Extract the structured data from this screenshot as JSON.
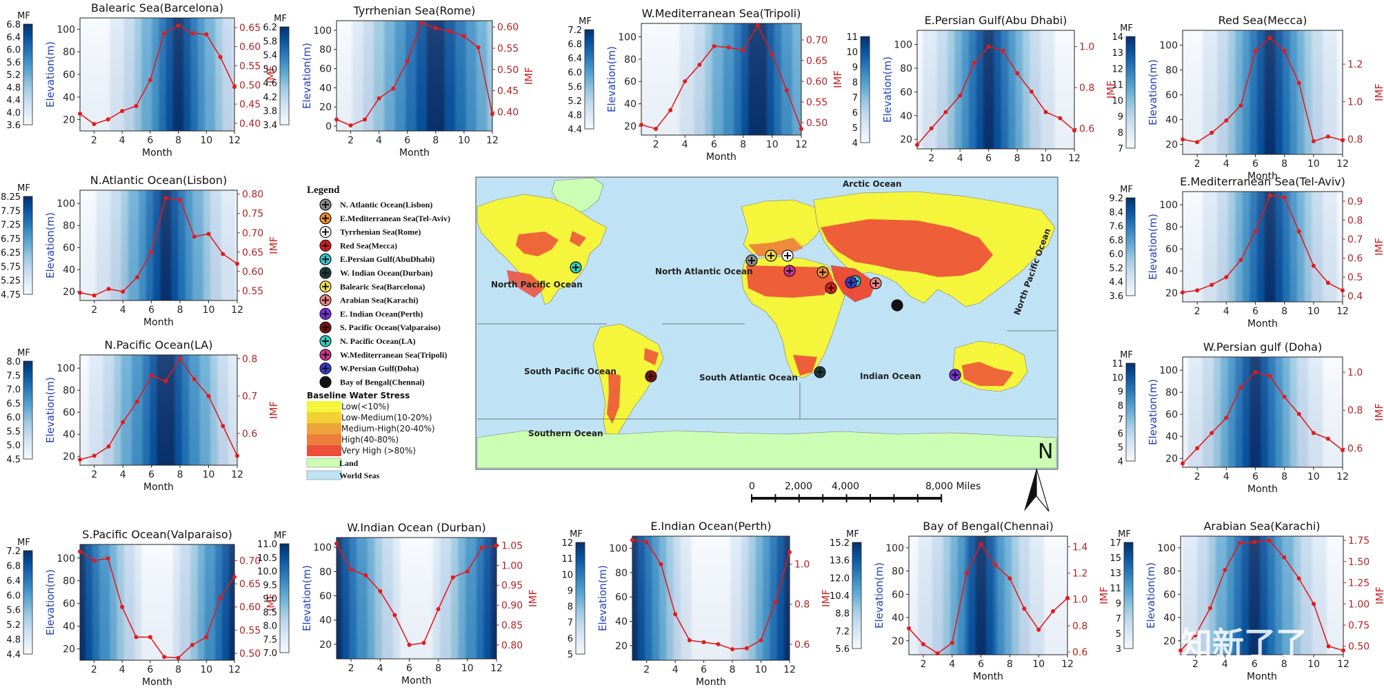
{
  "colors": {
    "ramp": [
      "#f7fbff",
      "#deebf7",
      "#c6dbef",
      "#9ecae1",
      "#6baed6",
      "#4292c6",
      "#2171b5",
      "#08519c",
      "#08306b"
    ],
    "imf_line": "#e31a1c",
    "ylabel_blue": "#1f3fbf",
    "ylabel_red": "#cc2222",
    "sea": "#bfe3f5",
    "land": "#ccffb3",
    "stress": [
      "#f5f53b",
      "#f2d232",
      "#eea43a",
      "#ec7f3c",
      "#ec4e3a"
    ]
  },
  "chart_data": [
    {
      "id": "barcelona",
      "type": "contour+line",
      "title": "Balearic Sea(Barcelona)",
      "xlabel": "Month",
      "ylabel": "Elevation(m)",
      "y2label": "IMF",
      "cbar_label": "MF",
      "xticks": [
        2,
        4,
        6,
        8,
        10,
        12
      ],
      "xlim": [
        1,
        12
      ],
      "yticks": [
        20,
        40,
        60,
        80,
        100
      ],
      "ylim": [
        10,
        110
      ],
      "y2ticks": [
        "0.40",
        "0.45",
        "0.50",
        "0.55",
        "0.60",
        "0.65"
      ],
      "y2lim": [
        0.38,
        0.675
      ],
      "cbar_ticks": [
        "3.6",
        "4.0",
        "4.4",
        "4.8",
        "5.2",
        "5.6",
        "6.0",
        "6.4",
        "6.8"
      ],
      "peak_month": 8,
      "sharpness": 1.6,
      "imf": [
        0.425,
        0.398,
        0.41,
        0.432,
        0.445,
        0.513,
        0.635,
        0.655,
        0.635,
        0.632,
        0.573,
        0.495
      ]
    },
    {
      "id": "rome",
      "type": "contour+line",
      "title": "Tyrrhenian Sea(Rome)",
      "xlabel": "Month",
      "ylabel": "Elevation(m)",
      "y2label": "IMF",
      "cbar_label": "MF",
      "xticks": [
        2,
        4,
        6,
        8,
        10,
        12
      ],
      "xlim": [
        1,
        12
      ],
      "yticks": [
        0,
        20,
        40,
        60,
        80,
        100
      ],
      "ylim": [
        -5,
        110
      ],
      "y2ticks": [
        "0.40",
        "0.45",
        "0.50",
        "0.55",
        "0.60"
      ],
      "y2lim": [
        0.355,
        0.615
      ],
      "cbar_ticks": [
        "3.4",
        "3.8",
        "4.2",
        "4.6",
        "5.0",
        "5.4",
        "5.8",
        "6.2"
      ],
      "peak_month": 8,
      "sharpness": 1.0,
      "imf": [
        0.382,
        0.368,
        0.382,
        0.432,
        0.455,
        0.52,
        0.61,
        0.597,
        0.59,
        0.578,
        0.552,
        0.395
      ]
    },
    {
      "id": "tripoli",
      "type": "contour+line",
      "title": "W.Mediterranean Sea(Tripoli)",
      "xlabel": "Month",
      "ylabel": "Elevation(m)",
      "y2label": "IMF",
      "cbar_label": "MF",
      "xticks": [
        2,
        4,
        6,
        8,
        10,
        12
      ],
      "xlim": [
        1,
        12
      ],
      "yticks": [
        20,
        40,
        60,
        80,
        100
      ],
      "ylim": [
        12,
        112
      ],
      "y2ticks": [
        "0.50",
        "0.55",
        "0.60",
        "0.65",
        "0.70"
      ],
      "y2lim": [
        0.47,
        0.74
      ],
      "cbar_ticks": [
        "4.4",
        "4.8",
        "5.2",
        "5.6",
        "6.0",
        "6.4",
        "6.8",
        "7.2"
      ],
      "peak_month": 9,
      "sharpness": 1.3,
      "imf": [
        0.495,
        0.485,
        0.53,
        0.6,
        0.64,
        0.685,
        0.682,
        0.675,
        0.735,
        0.665,
        0.578,
        0.485
      ]
    },
    {
      "id": "abudhabi",
      "type": "contour+line",
      "title": "E.Persian Gulf(Abu Dhabi)",
      "xlabel": "",
      "ylabel": "Elevation(m)",
      "y2label": "IMF",
      "cbar_label": "",
      "xticks": [
        2,
        4,
        6,
        8,
        10,
        12
      ],
      "xlim": [
        1,
        12
      ],
      "yticks": [
        20,
        40,
        60,
        80,
        100
      ],
      "ylim": [
        12,
        112
      ],
      "y2ticks": [
        "0.6",
        "0.8",
        "1.0"
      ],
      "y2lim": [
        0.5,
        1.08
      ],
      "cbar_ticks": [
        "4",
        "5",
        "6",
        "7",
        "8",
        "9",
        "10",
        "11"
      ],
      "peak_month": 6,
      "sharpness": 1.8,
      "imf": [
        0.52,
        0.6,
        0.68,
        0.76,
        0.92,
        1.0,
        0.98,
        0.87,
        0.78,
        0.68,
        0.65,
        0.59
      ]
    },
    {
      "id": "mecca",
      "type": "contour+line",
      "title": "Red Sea(Mecca)",
      "xlabel": "Month",
      "ylabel": "Elevation(m)",
      "y2label": "IMF",
      "cbar_label": "MF",
      "xticks": [
        2,
        4,
        6,
        8,
        10,
        12
      ],
      "xlim": [
        1,
        12
      ],
      "yticks": [
        20,
        40,
        60,
        80,
        100
      ],
      "ylim": [
        12,
        112
      ],
      "y2ticks": [
        "0.8",
        "1.0",
        "1.2"
      ],
      "y2lim": [
        0.72,
        1.38
      ],
      "cbar_ticks": [
        "7",
        "8",
        "9",
        "10",
        "11",
        "12",
        "13",
        "14"
      ],
      "peak_month": 7,
      "sharpness": 1.8,
      "imf": [
        0.8,
        0.785,
        0.835,
        0.9,
        0.98,
        1.27,
        1.34,
        1.27,
        1.1,
        0.79,
        0.815,
        0.795
      ]
    },
    {
      "id": "lisbon",
      "type": "contour+line",
      "title": "N.Atlantic Ocean(Lisbon)",
      "xlabel": "Month",
      "ylabel": "Elevation(m)",
      "y2label": "IMF",
      "cbar_label": "MF",
      "xticks": [
        2,
        4,
        6,
        8,
        10,
        12
      ],
      "xlim": [
        1,
        12
      ],
      "yticks": [
        20,
        40,
        60,
        80,
        100
      ],
      "ylim": [
        12,
        112
      ],
      "y2ticks": [
        "0.55",
        "0.60",
        "0.65",
        "0.70",
        "0.75",
        "0.80"
      ],
      "y2lim": [
        0.525,
        0.81
      ],
      "cbar_ticks": [
        "4.75",
        "5.25",
        "5.75",
        "6.25",
        "6.75",
        "7.25",
        "7.75",
        "8.25"
      ],
      "peak_month": 7,
      "sharpness": 1.6,
      "imf": [
        0.545,
        0.538,
        0.555,
        0.548,
        0.585,
        0.65,
        0.79,
        0.785,
        0.69,
        0.697,
        0.645,
        0.62
      ]
    },
    {
      "id": "la",
      "type": "contour+line",
      "title": "N.Pacific Ocean(LA)",
      "xlabel": "Month",
      "ylabel": "Elevation(m)",
      "y2label": "IMF",
      "cbar_label": "MF",
      "xticks": [
        2,
        4,
        6,
        8,
        10,
        12
      ],
      "xlim": [
        1,
        12
      ],
      "yticks": [
        20,
        40,
        60,
        80,
        100
      ],
      "ylim": [
        12,
        112
      ],
      "y2ticks": [
        "0.6",
        "0.7",
        "0.8"
      ],
      "y2lim": [
        0.515,
        0.81
      ],
      "cbar_ticks": [
        "4.5",
        "5.0",
        "5.5",
        "6.0",
        "6.5",
        "7.0",
        "7.5",
        "8.0"
      ],
      "peak_month": 7,
      "sharpness": 1.3,
      "imf": [
        0.53,
        0.54,
        0.565,
        0.63,
        0.685,
        0.755,
        0.74,
        0.8,
        0.745,
        0.7,
        0.62,
        0.54
      ]
    },
    {
      "id": "tel_aviv",
      "type": "contour+line",
      "title": "E.Mediterranean Sea(Tel-Aviv)",
      "xlabel": "Month",
      "ylabel": "Elevation(m)",
      "y2label": "IMF",
      "cbar_label": "MF",
      "xticks": [
        2,
        4,
        6,
        8,
        10,
        12
      ],
      "xlim": [
        1,
        12
      ],
      "yticks": [
        20,
        40,
        60,
        80,
        100
      ],
      "ylim": [
        12,
        112
      ],
      "y2ticks": [
        "0.4",
        "0.5",
        "0.6",
        "0.7",
        "0.8",
        "0.9"
      ],
      "y2lim": [
        0.37,
        0.95
      ],
      "cbar_ticks": [
        "3.6",
        "4.4",
        "5.2",
        "6.0",
        "6.8",
        "7.6",
        "8.4",
        "9.2"
      ],
      "peak_month": 7,
      "sharpness": 1.8,
      "imf": [
        0.42,
        0.43,
        0.46,
        0.5,
        0.59,
        0.74,
        0.93,
        0.92,
        0.74,
        0.56,
        0.47,
        0.43
      ]
    },
    {
      "id": "doha",
      "type": "contour+line",
      "title": "W.Persian gulf (Doha)",
      "xlabel": "Month",
      "ylabel": "Elevation(m)",
      "y2label": "IMF",
      "cbar_label": "MF",
      "xticks": [
        2,
        4,
        6,
        8,
        10,
        12
      ],
      "xlim": [
        1,
        12
      ],
      "yticks": [
        20,
        40,
        60,
        80,
        100
      ],
      "ylim": [
        12,
        112
      ],
      "y2ticks": [
        "0.6",
        "0.8",
        "1.0"
      ],
      "y2lim": [
        0.5,
        1.08
      ],
      "cbar_ticks": [
        "4",
        "5",
        "6",
        "7",
        "8",
        "9",
        "10",
        "11"
      ],
      "peak_month": 6,
      "sharpness": 1.8,
      "imf": [
        0.52,
        0.6,
        0.68,
        0.76,
        0.92,
        1.0,
        0.98,
        0.87,
        0.78,
        0.68,
        0.65,
        0.59
      ]
    },
    {
      "id": "valparaiso",
      "type": "contour+line",
      "title": "S.Pacific Ocean(Valparaiso)",
      "xlabel": "Month",
      "ylabel": "Elevation(m)",
      "y2label": "IMF",
      "cbar_label": "MF",
      "xticks": [
        2,
        4,
        6,
        8,
        10,
        12
      ],
      "xlim": [
        1,
        12
      ],
      "yticks": [
        20,
        40,
        60,
        80,
        100
      ],
      "ylim": [
        10,
        112
      ],
      "y2ticks": [
        "0.50",
        "0.55",
        "0.60",
        "0.65",
        "0.70"
      ],
      "y2lim": [
        0.485,
        0.735
      ],
      "cbar_ticks": [
        "4.4",
        "4.8",
        "5.2",
        "5.6",
        "6.0",
        "6.4",
        "6.8",
        "7.2"
      ],
      "peak_month": 1,
      "sharpness": 1.3,
      "edge_pattern": true,
      "imf": [
        0.72,
        0.7,
        0.705,
        0.6,
        0.535,
        0.535,
        0.492,
        0.49,
        0.518,
        0.535,
        0.62,
        0.665
      ]
    },
    {
      "id": "durban",
      "type": "contour+line",
      "title": "W.Indian Ocean (Durban)",
      "xlabel": "Month",
      "ylabel": "Elevation(m)",
      "y2label": "IMF",
      "cbar_label": "MF",
      "xticks": [
        2,
        4,
        6,
        8,
        10,
        12
      ],
      "xlim": [
        1,
        12
      ],
      "yticks": [
        20,
        40,
        60,
        80,
        100
      ],
      "ylim": [
        8,
        108
      ],
      "y2ticks": [
        "0.80",
        "0.85",
        "0.90",
        "0.95",
        "1.00",
        "1.05"
      ],
      "y2lim": [
        0.765,
        1.07
      ],
      "cbar_ticks": [
        "7.0",
        "7.5",
        "8.0",
        "8.5",
        "9.0",
        "9.5",
        "10.0",
        "10.5",
        "11.0"
      ],
      "peak_month": 1,
      "sharpness": 1.3,
      "edge_pattern": true,
      "imf": [
        1.055,
        0.99,
        0.975,
        0.935,
        0.875,
        0.8,
        0.805,
        0.89,
        0.97,
        0.985,
        1.045,
        1.05
      ]
    },
    {
      "id": "perth",
      "type": "contour+line",
      "title": "E.Indian Ocean(Perth)",
      "xlabel": "Month",
      "ylabel": "Elevation(m)",
      "y2label": "IMF",
      "cbar_label": "MF",
      "xticks": [
        2,
        4,
        6,
        8,
        10,
        12
      ],
      "xlim": [
        1,
        12
      ],
      "yticks": [
        20,
        40,
        60,
        80,
        100
      ],
      "ylim": [
        8,
        110
      ],
      "y2ticks": [
        "0.6",
        "0.8",
        "1.0"
      ],
      "y2lim": [
        0.52,
        1.14
      ],
      "cbar_ticks": [
        "5",
        "6",
        "7",
        "8",
        "9",
        "10",
        "11",
        "12"
      ],
      "peak_month": 1,
      "sharpness": 1.5,
      "edge_pattern": true,
      "imf": [
        1.12,
        1.11,
        1.0,
        0.75,
        0.62,
        0.61,
        0.6,
        0.575,
        0.58,
        0.62,
        0.81,
        1.06
      ]
    },
    {
      "id": "chennai",
      "type": "contour+line",
      "title": "Bay of Bengal(Chennai)",
      "xlabel": "Month",
      "ylabel": "Elevation(m)",
      "y2label": "IMF",
      "cbar_label": "MF",
      "xticks": [
        2,
        4,
        6,
        8,
        10,
        12
      ],
      "xlim": [
        1,
        12
      ],
      "yticks": [
        20,
        40,
        60,
        80,
        100
      ],
      "ylim": [
        8,
        110
      ],
      "y2ticks": [
        "0.6",
        "0.8",
        "1.0",
        "1.2",
        "1.4"
      ],
      "y2lim": [
        0.58,
        1.48
      ],
      "cbar_ticks": [
        "5.6",
        "7.2",
        "8.8",
        "10.4",
        "12.0",
        "13.6",
        "15.2"
      ],
      "peak_month": 6,
      "sharpness": 2.0,
      "imf": [
        0.78,
        0.66,
        0.59,
        0.67,
        1.2,
        1.42,
        1.26,
        1.16,
        0.93,
        0.77,
        0.91,
        1.01
      ]
    },
    {
      "id": "karachi",
      "type": "contour+line",
      "title": "Arabian Sea(Karachi)",
      "xlabel": "Month",
      "ylabel": "Elevation(m)",
      "y2label": "IMF",
      "cbar_label": "MF",
      "xticks": [
        2,
        4,
        6,
        8,
        10,
        12
      ],
      "xlim": [
        1,
        12
      ],
      "yticks": [
        20,
        40,
        60,
        80,
        100
      ],
      "ylim": [
        8,
        110
      ],
      "y2ticks": [
        "0.50",
        "0.75",
        "1.00",
        "1.25",
        "1.50",
        "1.75"
      ],
      "y2lim": [
        0.4,
        1.8
      ],
      "cbar_ticks": [
        "3",
        "5",
        "7",
        "9",
        "11",
        "13",
        "15",
        "17"
      ],
      "peak_month": 6,
      "sharpness": 1.6,
      "imf": [
        0.45,
        0.63,
        0.95,
        1.4,
        1.72,
        1.73,
        1.75,
        1.55,
        1.3,
        1.0,
        0.5,
        0.45
      ]
    }
  ],
  "legend": {
    "title": "Legend",
    "items": [
      {
        "label": "N. Atlantic Ocean(Lisbon)",
        "color": "#8a8a8a"
      },
      {
        "label": "E.Mediterranean Sea(Tel-Aviv)",
        "color": "#f28c28"
      },
      {
        "label": "Tyrrhenian Sea(Rome)",
        "color": "#ffffff"
      },
      {
        "label": "Red Sea(Mecca)",
        "color": "#e41a1c"
      },
      {
        "label": "E.Persian Gulf(AbuDhabi)",
        "color": "#34c4cf"
      },
      {
        "label": "W. Indian Ocean(Durban)",
        "color": "#1e3b3b"
      },
      {
        "label": "Balearic Sea(Barcelona)",
        "color": "#f4e04d"
      },
      {
        "label": "Arabian Sea(Karachi)",
        "color": "#f08080"
      },
      {
        "label": "E. Indian Ocean(Perth)",
        "color": "#7b2fe0"
      },
      {
        "label": "S. Pacific Ocean(Valparaiso)",
        "color": "#7a1010"
      },
      {
        "label": "N. Pacific Ocean(LA)",
        "color": "#2ed1c1"
      },
      {
        "label": "W.Mediterranean Sea(Tripoli)",
        "color": "#d1348f"
      },
      {
        "label": "W.Persian Gulf(Doha)",
        "color": "#3a3ad0"
      },
      {
        "label": "Bay of Bengal(Chennai)",
        "color": "#111111"
      }
    ],
    "stress_title": "Baseline Water Stress",
    "stress": [
      "Low(<10%)",
      "Low-Medium(10-20%)",
      "Medium-High(20-40%)",
      "High(40-80%)",
      "Very High (>80%)"
    ],
    "land": "Land",
    "seas": "World Seas"
  },
  "map": {
    "labels": {
      "arctic": "Arctic Ocean",
      "north_pacific_left": "North Pacific Ocean",
      "north_atlantic": "North Atlantic Ocean",
      "north_pacific_right": "North Pacific Ocean",
      "south_pacific": "South Pacific Ocean",
      "south_atlantic": "South Atlantic Ocean",
      "indian": "Indian Ocean",
      "southern": "Southern Ocean"
    },
    "north": "N",
    "scale_labels": [
      "0",
      "2,000",
      "4,000",
      "8,000 Miles"
    ]
  },
  "watermark": "知新了了"
}
